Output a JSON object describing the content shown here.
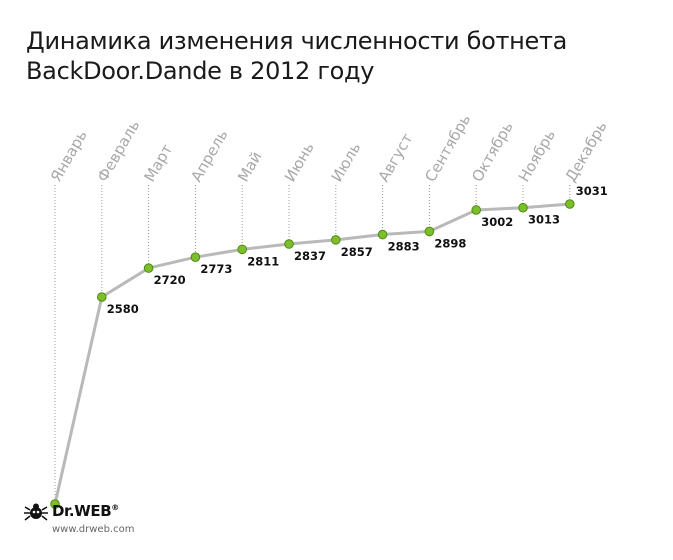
{
  "chart_data": {
    "type": "line",
    "title_line1": "Динамика изменения численности ботнета",
    "title_line2": "BackDoor.Dande в 2012 году",
    "categories": [
      "Январь",
      "Февраль",
      "Март",
      "Апрель",
      "Май",
      "Июнь",
      "Июль",
      "Август",
      "Сентябрь",
      "Октябрь",
      "Ноябрь",
      "Декабрь"
    ],
    "values": [
      null,
      2580,
      2720,
      2773,
      2811,
      2837,
      2857,
      2883,
      2898,
      3002,
      3013,
      3031
    ],
    "data_labels": [
      "",
      "2580",
      "2720",
      "2773",
      "2811",
      "2837",
      "2857",
      "2883",
      "2898",
      "3002",
      "3013",
      "3031"
    ],
    "grid": "vertical dotted lines per month",
    "legend": "none",
    "colors": {
      "line": "#b9b9b9",
      "marker": "#7cbf2a",
      "marker_stroke": "#4d8a12",
      "month_label": "#a8a8a8",
      "value_label": "#111111"
    }
  },
  "logo": {
    "word": "Dr.WEB",
    "reg": "®",
    "url": "www.drweb.com",
    "icon": "spider-icon"
  }
}
